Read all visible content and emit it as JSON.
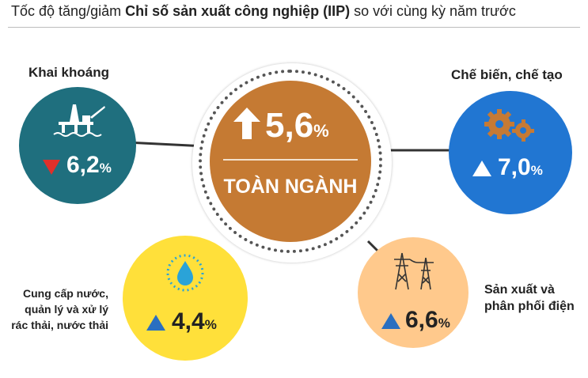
{
  "title": {
    "part1": "Tốc độ tăng/giảm ",
    "part2": "Chỉ số sản xuất công nghiệp (IIP)",
    "part3": " so với cùng kỳ năm trước"
  },
  "center": {
    "value": "5,6",
    "unit": "%",
    "label": "TOÀN NGÀNH",
    "trend": "up"
  },
  "sectors": {
    "mining": {
      "label": "Khai khoáng",
      "value": "6,2",
      "unit": "%",
      "trend": "down",
      "icon": "oil-rig-icon"
    },
    "manufacturing": {
      "label": "Chế biến, chế tạo",
      "value": "7,0",
      "unit": "%",
      "trend": "up",
      "icon": "gears-icon"
    },
    "water": {
      "label_lines": [
        "Cung cấp nước,",
        "quản lý và xử lý",
        "rác thải, nước thải"
      ],
      "value": "4,4",
      "unit": "%",
      "trend": "up",
      "icon": "water-drop-icon"
    },
    "electricity": {
      "label_lines": [
        "Sản xuất và",
        "phân phối điện"
      ],
      "value": "6,6",
      "unit": "%",
      "trend": "up",
      "icon": "power-tower-icon"
    }
  },
  "colors": {
    "center": "#c57a33",
    "mining": "#1f6f7e",
    "manufacturing": "#2176d2",
    "water": "#ffe03a",
    "electricity": "#ffc98c",
    "down": "#e0302a",
    "up_dark": "#2a6fc0"
  }
}
